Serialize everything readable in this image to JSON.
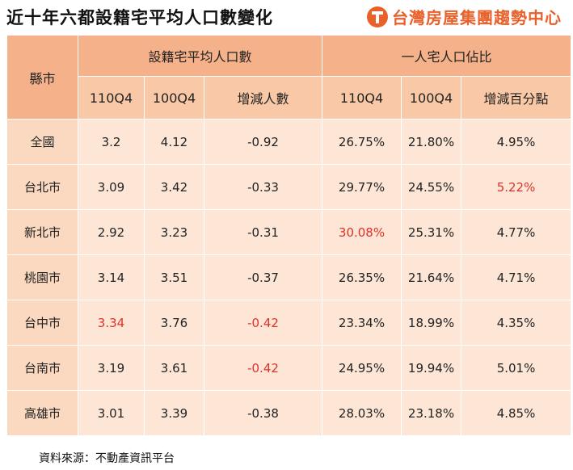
{
  "title": "近十年六都設籍宅平均人口數變化",
  "brand": {
    "name": "台灣房屋集團趨勢中心",
    "logo_icon": "taiwan-realty-logo-icon",
    "color": "#e8602a"
  },
  "table": {
    "county_header": "縣市",
    "group1_header": "設籍宅平均人口數",
    "group2_header": "一人宅人口佔比",
    "sub_headers": [
      "110Q4",
      "100Q4",
      "增減人數",
      "110Q4",
      "100Q4",
      "增減百分點"
    ],
    "highlight_color": "#e0302a",
    "rows": [
      {
        "region": "全國",
        "p110": "3.2",
        "p100": "4.12",
        "diff": "-0.92",
        "s110": "26.75%",
        "s100": "21.80%",
        "sdiff": "4.95%"
      },
      {
        "region": "台北市",
        "p110": "3.09",
        "p100": "3.42",
        "diff": "-0.33",
        "s110": "29.77%",
        "s100": "24.55%",
        "sdiff": "5.22%"
      },
      {
        "region": "新北市",
        "p110": "2.92",
        "p100": "3.23",
        "diff": "-0.31",
        "s110": "30.08%",
        "s100": "25.31%",
        "sdiff": "4.77%"
      },
      {
        "region": "桃園市",
        "p110": "3.14",
        "p100": "3.51",
        "diff": "-0.37",
        "s110": "26.35%",
        "s100": "21.64%",
        "sdiff": "4.71%"
      },
      {
        "region": "台中市",
        "p110": "3.34",
        "p100": "3.76",
        "diff": "-0.42",
        "s110": "23.34%",
        "s100": "18.99%",
        "sdiff": "4.35%"
      },
      {
        "region": "台南市",
        "p110": "3.19",
        "p100": "3.61",
        "diff": "-0.42",
        "s110": "24.95%",
        "s100": "19.94%",
        "sdiff": "5.01%"
      },
      {
        "region": "高雄市",
        "p110": "3.01",
        "p100": "3.39",
        "diff": "-0.38",
        "s110": "28.03%",
        "s100": "23.18%",
        "sdiff": "4.85%"
      }
    ]
  },
  "source": "資料來源：不動產資訊平台"
}
